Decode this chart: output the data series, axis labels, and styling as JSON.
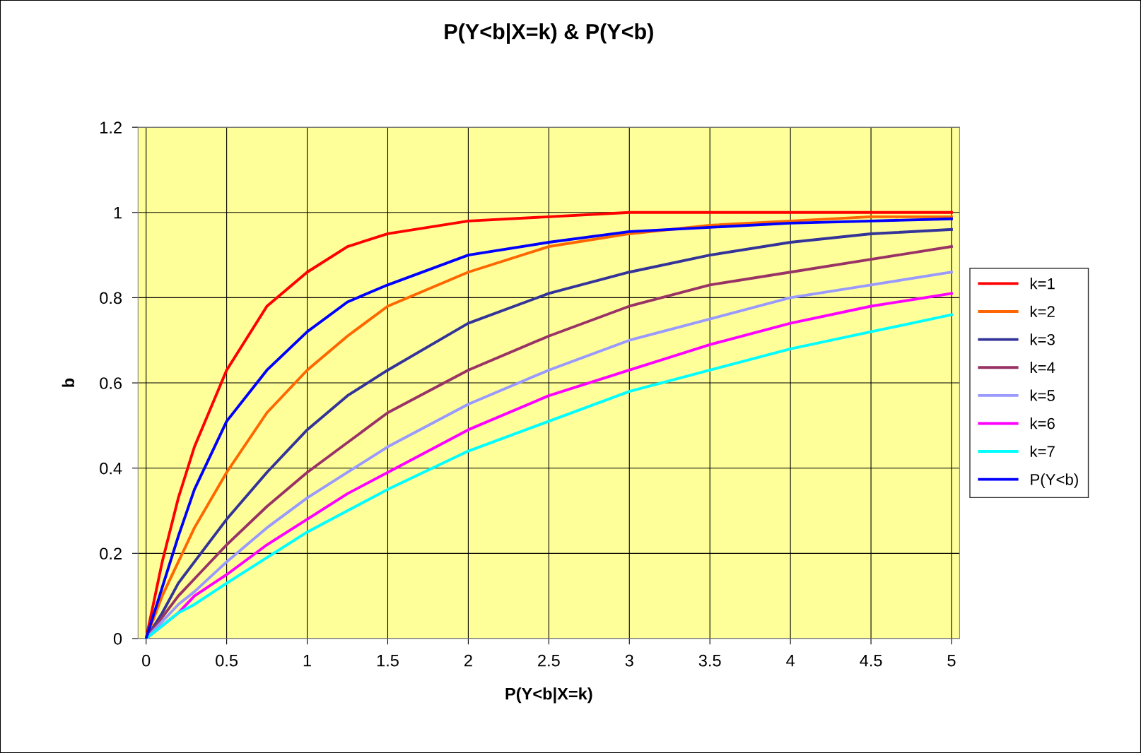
{
  "chart_data": {
    "type": "line",
    "title": "P(Y<b|X=k) & P(Y<b)",
    "xlabel": "P(Y<b|X=k)",
    "ylabel": "b",
    "x": [
      0,
      0.1,
      0.2,
      0.3,
      0.5,
      0.75,
      1,
      1.25,
      1.5,
      2,
      2.5,
      3,
      3.5,
      4,
      4.5,
      5
    ],
    "series": [
      {
        "name": "k=1",
        "color": "#ff0000",
        "values": [
          0,
          0.18,
          0.33,
          0.45,
          0.63,
          0.78,
          0.86,
          0.92,
          0.95,
          0.98,
          0.99,
          1.0,
          1.0,
          1.0,
          1.0,
          1.0
        ]
      },
      {
        "name": "k=2",
        "color": "#ff6600",
        "values": [
          0,
          0.1,
          0.18,
          0.26,
          0.39,
          0.53,
          0.63,
          0.71,
          0.78,
          0.86,
          0.92,
          0.95,
          0.97,
          0.98,
          0.99,
          0.99
        ]
      },
      {
        "name": "k=3",
        "color": "#333399",
        "values": [
          0,
          0.06,
          0.13,
          0.18,
          0.28,
          0.39,
          0.49,
          0.57,
          0.63,
          0.74,
          0.81,
          0.86,
          0.9,
          0.93,
          0.95,
          0.96
        ]
      },
      {
        "name": "k=4",
        "color": "#993366",
        "values": [
          0,
          0.05,
          0.1,
          0.14,
          0.22,
          0.31,
          0.39,
          0.46,
          0.53,
          0.63,
          0.71,
          0.78,
          0.83,
          0.86,
          0.89,
          0.92
        ]
      },
      {
        "name": "k=5",
        "color": "#9999ff",
        "values": [
          0,
          0.04,
          0.08,
          0.11,
          0.18,
          0.26,
          0.33,
          0.39,
          0.45,
          0.55,
          0.63,
          0.7,
          0.75,
          0.8,
          0.83,
          0.86
        ]
      },
      {
        "name": "k=6",
        "color": "#ff00ff",
        "values": [
          0,
          0.03,
          0.06,
          0.1,
          0.15,
          0.22,
          0.28,
          0.34,
          0.39,
          0.49,
          0.57,
          0.63,
          0.69,
          0.74,
          0.78,
          0.81
        ]
      },
      {
        "name": "k=7",
        "color": "#00ffff",
        "values": [
          0,
          0.03,
          0.06,
          0.08,
          0.13,
          0.19,
          0.25,
          0.3,
          0.35,
          0.44,
          0.51,
          0.58,
          0.63,
          0.68,
          0.72,
          0.76
        ]
      },
      {
        "name": "P(Y<b)",
        "color": "#0000ff",
        "values": [
          0,
          0.12,
          0.24,
          0.35,
          0.51,
          0.63,
          0.72,
          0.79,
          0.83,
          0.9,
          0.93,
          0.955,
          0.965,
          0.975,
          0.98,
          0.985
        ]
      }
    ],
    "xlim": [
      -0.05,
      5.05
    ],
    "xticks": [
      0,
      0.5,
      1,
      1.5,
      2,
      2.5,
      3,
      3.5,
      4,
      4.5,
      5
    ],
    "ylim": [
      0,
      1.2
    ],
    "yticks": [
      0,
      0.2,
      0.4,
      0.6,
      0.8,
      1,
      1.2
    ],
    "grid": true,
    "legend": "right",
    "marker": "none",
    "line_style": "solid"
  }
}
